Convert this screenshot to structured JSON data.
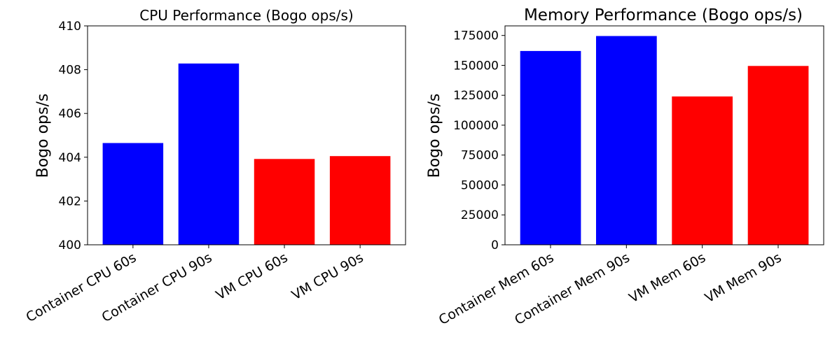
{
  "chart_data": [
    {
      "type": "bar",
      "title": "CPU Performance (Bogo ops/s)",
      "xlabel": "",
      "ylabel": "Bogo ops/s",
      "ylim": [
        400,
        410
      ],
      "yticks": [
        400,
        402,
        404,
        406,
        408,
        410
      ],
      "categories": [
        "Container CPU 60s",
        "Container CPU 90s",
        "VM CPU 60s",
        "VM CPU 90s"
      ],
      "values": [
        404.65,
        408.28,
        403.92,
        404.05
      ],
      "colors": [
        "#0000ff",
        "#0000ff",
        "#ff0000",
        "#ff0000"
      ],
      "grid": false,
      "legend": "none"
    },
    {
      "type": "bar",
      "title": "Memory Performance (Bogo ops/s)",
      "xlabel": "",
      "ylabel": "Bogo ops/s",
      "ylim": [
        0,
        183000
      ],
      "yticks": [
        0,
        25000,
        50000,
        75000,
        100000,
        125000,
        150000,
        175000
      ],
      "categories": [
        "Container Mem 60s",
        "Container Mem 90s",
        "VM Mem 60s",
        "VM Mem 90s"
      ],
      "values": [
        162000,
        174500,
        124000,
        149500
      ],
      "colors": [
        "#0000ff",
        "#0000ff",
        "#ff0000",
        "#ff0000"
      ],
      "grid": false,
      "legend": "none"
    }
  ]
}
